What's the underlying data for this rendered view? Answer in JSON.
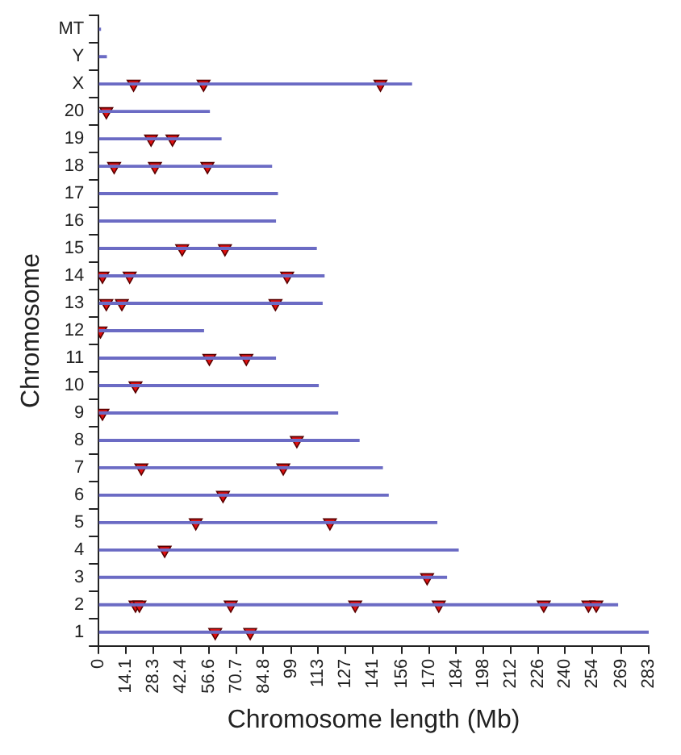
{
  "chart_data": {
    "type": "bar",
    "orientation": "horizontal",
    "xlabel": "Chromosome length (Mb)",
    "ylabel": "Chromosome",
    "categories": [
      "MT",
      "Y",
      "X",
      "20",
      "19",
      "18",
      "17",
      "16",
      "15",
      "14",
      "13",
      "12",
      "11",
      "10",
      "9",
      "8",
      "7",
      "6",
      "5",
      "4",
      "3",
      "2",
      "1"
    ],
    "xlim": [
      0,
      283
    ],
    "xticks": [
      0,
      14.1,
      28.3,
      42.4,
      56.6,
      70.7,
      84.8,
      99,
      113,
      127,
      141,
      156,
      170,
      184,
      198,
      212,
      226,
      240,
      254,
      269,
      283
    ],
    "grid": false,
    "legend": false,
    "series": [
      {
        "color": "#6b6bc4",
        "values": [
          1,
          4,
          161,
          57,
          63,
          89,
          92,
          91,
          112,
          116,
          115,
          54,
          91,
          113,
          123,
          134,
          146,
          149,
          174,
          185,
          179,
          267,
          283
        ]
      },
      {
        "type": "scatter",
        "color": "#e01010",
        "marker": "triangle",
        "x": [
          "1",
          "1",
          "2",
          "2",
          "2",
          "2",
          "2",
          "2",
          "2",
          "2",
          "3",
          "4",
          "5",
          "5",
          "6",
          "7",
          "7",
          "8",
          "9",
          "10",
          "11",
          "11",
          "12",
          "13",
          "13",
          "13",
          "14",
          "14",
          "14",
          "15",
          "15",
          "18",
          "18",
          "18",
          "19",
          "19",
          "20",
          "X",
          "X",
          "X"
        ],
        "values": [
          60,
          78,
          19,
          21,
          68,
          132,
          175,
          229,
          252,
          256,
          169,
          34,
          50,
          119,
          64,
          22,
          95,
          102,
          2,
          19,
          57,
          76,
          1,
          4,
          12,
          91,
          2,
          16,
          97,
          43,
          65,
          8,
          29,
          56,
          27,
          38,
          4,
          18,
          54,
          145
        ]
      }
    ]
  }
}
